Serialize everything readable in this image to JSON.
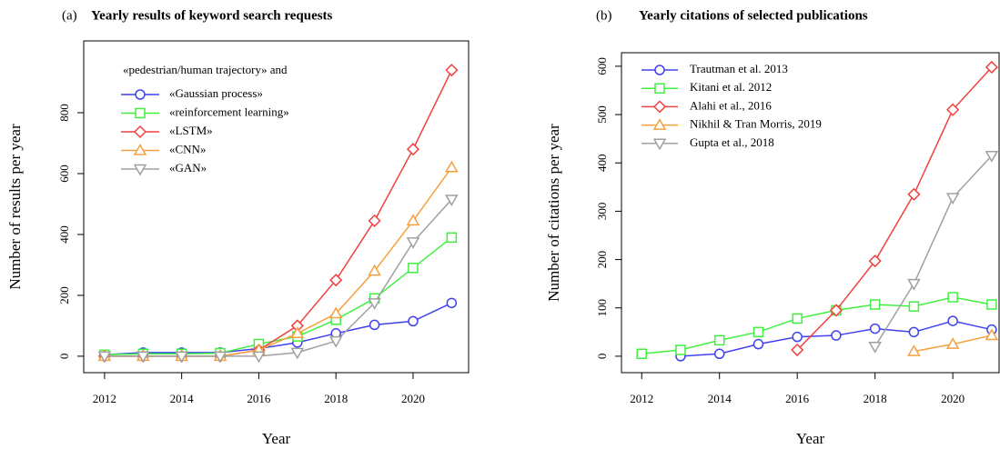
{
  "chart_data": [
    {
      "type": "line",
      "label": "(a)",
      "title": "Yearly results of keyword search requests",
      "x_label": "Year",
      "y_label": "Number of results per year",
      "legend_title": "«pedestrian/human trajectory» and",
      "x": [
        2012,
        2013,
        2014,
        2015,
        2016,
        2017,
        2018,
        2019,
        2020,
        2021
      ],
      "xlim": [
        2011.46,
        2021.44
      ],
      "xticks": [
        2012,
        2014,
        2016,
        2018,
        2020
      ],
      "ylim": [
        -54,
        1036
      ],
      "yticks": [
        0,
        200,
        400,
        600,
        800
      ],
      "legend": "top-left",
      "series": [
        {
          "name": "«Gaussian process»",
          "color": "#4040f0",
          "marker": "circle",
          "values": [
            5,
            12,
            12,
            12,
            25,
            45,
            75,
            103,
            115,
            175
          ]
        },
        {
          "name": "«reinforcement learning»",
          "color": "#40f040",
          "marker": "square",
          "values": [
            5,
            8,
            8,
            10,
            40,
            65,
            120,
            190,
            290,
            390
          ]
        },
        {
          "name": "«LSTM»",
          "color": "#f04040",
          "marker": "diamond",
          "values": [
            0,
            0,
            0,
            0,
            20,
            100,
            250,
            445,
            680,
            940
          ]
        },
        {
          "name": "«CNN»",
          "color": "#f5a040",
          "marker": "triangle-up",
          "values": [
            0,
            0,
            0,
            0,
            20,
            75,
            140,
            280,
            445,
            620
          ]
        },
        {
          "name": "«GAN»",
          "color": "#a0a0a0",
          "marker": "triangle-down",
          "values": [
            0,
            0,
            0,
            0,
            0,
            12,
            50,
            175,
            375,
            515
          ]
        }
      ]
    },
    {
      "type": "line",
      "label": "(b)",
      "title": "Yearly citations of selected publications",
      "x_label": "Year",
      "y_label": "Number of citations per year",
      "x": [
        2012,
        2013,
        2014,
        2015,
        2016,
        2017,
        2018,
        2019,
        2020,
        2021
      ],
      "xlim": [
        2011.48,
        2021.19
      ],
      "xticks": [
        2012,
        2014,
        2016,
        2018,
        2020
      ],
      "ylim": [
        -34,
        628
      ],
      "yticks": [
        0,
        100,
        200,
        300,
        400,
        500,
        600
      ],
      "legend": "top-left",
      "series": [
        {
          "name": "Trautman et al. 2013",
          "color": "#4040f0",
          "marker": "circle",
          "values": [
            null,
            0,
            5,
            25,
            40,
            43,
            57,
            50,
            73,
            55
          ]
        },
        {
          "name": "Kitani et al. 2012",
          "color": "#40f040",
          "marker": "square",
          "values": [
            5,
            13,
            33,
            50,
            78,
            95,
            107,
            103,
            122,
            107
          ]
        },
        {
          "name": "Alahi et al., 2016",
          "color": "#f04040",
          "marker": "diamond",
          "values": [
            null,
            null,
            null,
            null,
            13,
            95,
            197,
            335,
            510,
            598
          ]
        },
        {
          "name": "Nikhil & Tran Morris, 2019",
          "color": "#f5a040",
          "marker": "triangle-up",
          "values": [
            null,
            null,
            null,
            null,
            null,
            null,
            null,
            10,
            25,
            43
          ]
        },
        {
          "name": "Gupta et al., 2018",
          "color": "#a0a0a0",
          "marker": "triangle-down",
          "values": [
            null,
            null,
            null,
            null,
            null,
            null,
            20,
            150,
            328,
            415
          ]
        }
      ]
    }
  ]
}
